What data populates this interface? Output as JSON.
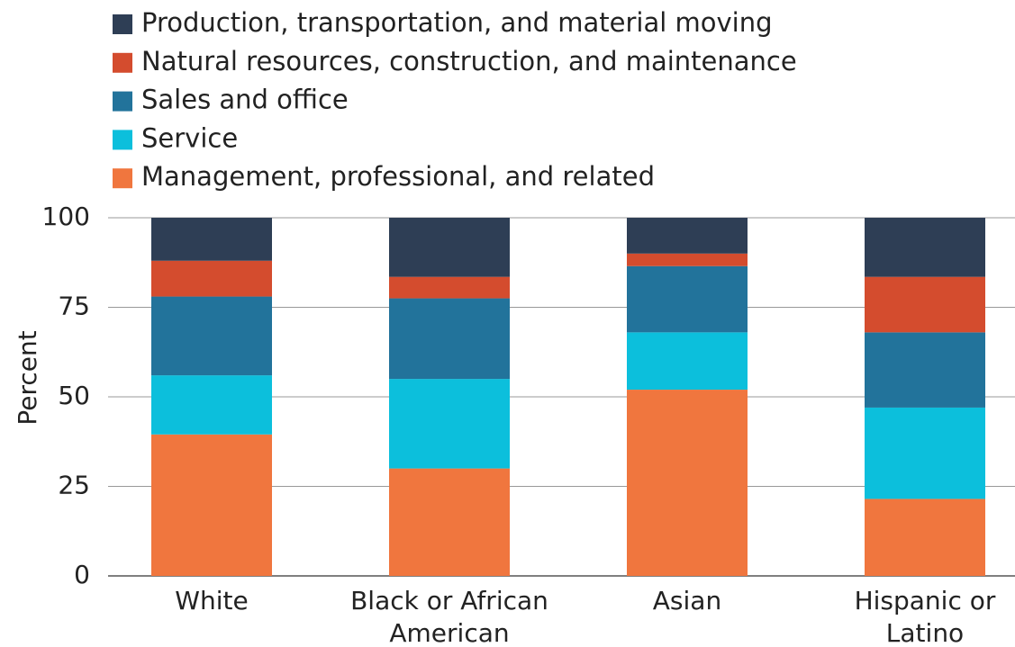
{
  "chart_data": {
    "type": "stacked_bar",
    "y_label": "Percent",
    "categories": [
      "White",
      "Black or African American",
      "Asian",
      "Hispanic or Latino"
    ],
    "series": [
      {
        "name": "Management, professional, and related",
        "color": "#f0763e",
        "values": [
          39.5,
          30,
          52,
          21.5
        ]
      },
      {
        "name": "Service",
        "color": "#0cbfdc",
        "values": [
          16.5,
          25,
          16,
          25.5
        ]
      },
      {
        "name": "Sales and office",
        "color": "#22739b",
        "values": [
          22,
          22.5,
          18.5,
          21
        ]
      },
      {
        "name": "Natural resources, construction, and maintenance",
        "color": "#d44c2e",
        "values": [
          10,
          6,
          3.5,
          15.5
        ]
      },
      {
        "name": "Production, transportation, and material moving",
        "color": "#2e3e55",
        "values": [
          12,
          16.5,
          10,
          16.5
        ]
      }
    ],
    "ylim": [
      0,
      100
    ],
    "yticks": [
      0,
      25,
      50,
      75,
      100
    ],
    "grid": true
  }
}
